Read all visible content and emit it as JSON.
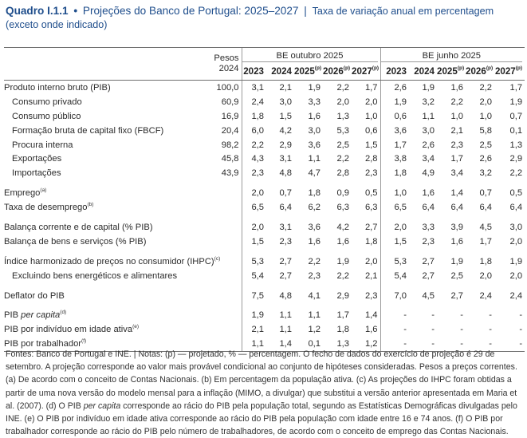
{
  "title": {
    "number": "Quadro I.1.1",
    "bullet": "•",
    "main": "Projeções do Banco de Portugal: 2025–2027",
    "separator": "|",
    "subtitle": "Taxa de variação anual em percentagem",
    "subtitle2": "(exceto onde indicado)"
  },
  "header": {
    "weights_label_1": "Pesos",
    "weights_label_2": "2024",
    "group1": "BE outubro 2025",
    "group2": "BE junho 2025",
    "years": [
      {
        "y": "2023",
        "p": ""
      },
      {
        "y": "2024",
        "p": ""
      },
      {
        "y": "2025",
        "p": "(p)"
      },
      {
        "y": "2026",
        "p": "(p)"
      },
      {
        "y": "2027",
        "p": "(p)"
      }
    ]
  },
  "rows": [
    {
      "label": "Produto interno bruto (PIB)",
      "sup": "",
      "w": "100,0",
      "oct": [
        "3,1",
        "2,1",
        "1,9",
        "2,2",
        "1,7"
      ],
      "jun": [
        "2,6",
        "1,9",
        "1,6",
        "2,2",
        "1,7"
      ]
    },
    {
      "label": "Consumo privado",
      "sup": "",
      "w": "60,9",
      "oct": [
        "2,4",
        "3,0",
        "3,3",
        "2,0",
        "2,0"
      ],
      "jun": [
        "1,9",
        "3,2",
        "2,2",
        "2,0",
        "1,9"
      ]
    },
    {
      "label": "Consumo público",
      "sup": "",
      "w": "16,9",
      "oct": [
        "1,8",
        "1,5",
        "1,6",
        "1,3",
        "1,0"
      ],
      "jun": [
        "0,6",
        "1,1",
        "1,0",
        "1,0",
        "0,7"
      ]
    },
    {
      "label": "Formação bruta de capital fixo (FBCF)",
      "sup": "",
      "w": "20,4",
      "oct": [
        "6,0",
        "4,2",
        "3,0",
        "5,3",
        "0,6"
      ],
      "jun": [
        "3,6",
        "3,0",
        "2,1",
        "5,8",
        "0,1"
      ]
    },
    {
      "label": "Procura interna",
      "sup": "",
      "w": "98,2",
      "oct": [
        "2,2",
        "2,9",
        "3,6",
        "2,5",
        "1,5"
      ],
      "jun": [
        "1,7",
        "2,6",
        "2,3",
        "2,5",
        "1,3"
      ]
    },
    {
      "label": "Exportações",
      "sup": "",
      "w": "45,8",
      "oct": [
        "4,3",
        "3,1",
        "1,1",
        "2,2",
        "2,8"
      ],
      "jun": [
        "3,8",
        "3,4",
        "1,7",
        "2,6",
        "2,9"
      ]
    },
    {
      "label": "Importações",
      "sup": "",
      "w": "43,9",
      "oct": [
        "2,3",
        "4,8",
        "4,7",
        "2,8",
        "2,3"
      ],
      "jun": [
        "1,8",
        "4,9",
        "3,4",
        "3,2",
        "2,2"
      ]
    },
    {
      "label": "Emprego",
      "sup": "(a)",
      "w": "",
      "oct": [
        "2,0",
        "0,7",
        "1,8",
        "0,9",
        "0,5"
      ],
      "jun": [
        "1,0",
        "1,6",
        "1,4",
        "0,7",
        "0,5"
      ]
    },
    {
      "label": "Taxa de desemprego",
      "sup": "(b)",
      "w": "",
      "oct": [
        "6,5",
        "6,4",
        "6,2",
        "6,3",
        "6,3"
      ],
      "jun": [
        "6,5",
        "6,4",
        "6,4",
        "6,4",
        "6,4"
      ]
    },
    {
      "label": "Balança corrente e de capital (% PIB)",
      "sup": "",
      "w": "",
      "oct": [
        "2,0",
        "3,1",
        "3,6",
        "4,2",
        "2,7"
      ],
      "jun": [
        "2,0",
        "3,3",
        "3,9",
        "4,5",
        "3,0"
      ]
    },
    {
      "label": "Balança de bens e serviços (% PIB)",
      "sup": "",
      "w": "",
      "oct": [
        "1,5",
        "2,3",
        "1,6",
        "1,6",
        "1,8"
      ],
      "jun": [
        "1,5",
        "2,3",
        "1,6",
        "1,7",
        "2,0"
      ]
    },
    {
      "label": "Índice harmonizado de preços no consumidor (IHPC)",
      "sup": "(c)",
      "w": "",
      "oct": [
        "5,3",
        "2,7",
        "2,2",
        "1,9",
        "2,0"
      ],
      "jun": [
        "5,3",
        "2,7",
        "1,9",
        "1,8",
        "1,9"
      ]
    },
    {
      "label": "Excluindo bens energéticos e alimentares",
      "sup": "",
      "w": "",
      "oct": [
        "5,4",
        "2,7",
        "2,3",
        "2,2",
        "2,1"
      ],
      "jun": [
        "5,4",
        "2,7",
        "2,5",
        "2,0",
        "2,0"
      ]
    },
    {
      "label": "Deflator do PIB",
      "sup": "",
      "w": "",
      "oct": [
        "7,5",
        "4,8",
        "4,1",
        "2,9",
        "2,3"
      ],
      "jun": [
        "7,0",
        "4,5",
        "2,7",
        "2,4",
        "2,4"
      ]
    },
    {
      "label_pre": "PIB ",
      "label_it": "per capita",
      "sup": "(d)",
      "w": "",
      "oct": [
        "1,9",
        "1,1",
        "1,1",
        "1,7",
        "1,4"
      ],
      "jun": [
        "-",
        "-",
        "-",
        "-",
        "-"
      ]
    },
    {
      "label": "PIB por indivíduo em idade ativa",
      "sup": "(e)",
      "w": "",
      "oct": [
        "2,1",
        "1,1",
        "1,2",
        "1,8",
        "1,6"
      ],
      "jun": [
        "-",
        "-",
        "-",
        "-",
        "-"
      ]
    },
    {
      "label": "PIB por trabalhador",
      "sup": "(f)",
      "w": "",
      "oct": [
        "1,1",
        "1,4",
        "0,1",
        "1,3",
        "1,2"
      ],
      "jun": [
        "-",
        "-",
        "-",
        "-",
        "-"
      ]
    }
  ],
  "notes": {
    "p1": "Fontes: Banco de Portugal e INE.  |  Notas: (p) — projetado, % — percentagem. O fecho de dados do exercício de projeção é 29 de setembro. A projeção corresponde ao valor mais provável condicional ao conjunto de hipóteses consideradas. Pesos a preços correntes. (a) De acordo com o conceito de Contas Nacionais. (b) Em percentagem da população ativa. (c) As projeções do IHPC foram obtidas a partir de uma nova versão do modelo mensal para a inflação (MIMO, a divulgar) que substitui a versão anterior apresentada em Maria et al. (2007). (d) O PIB ",
    "p_it": "per capita",
    "p2": " corresponde ao rácio do PIB pela população total, segundo as Estatísticas Demográficas divulgadas pelo INE. (e) O PIB por indivíduo em idade ativa corresponde ao rácio do PIB pela população com idade entre 16 e 74 anos. (f) O PIB por trabalhador corresponde ao rácio do PIB pelo número de trabalhadores, de acordo com o conceito de emprego das Contas Nacionais."
  }
}
